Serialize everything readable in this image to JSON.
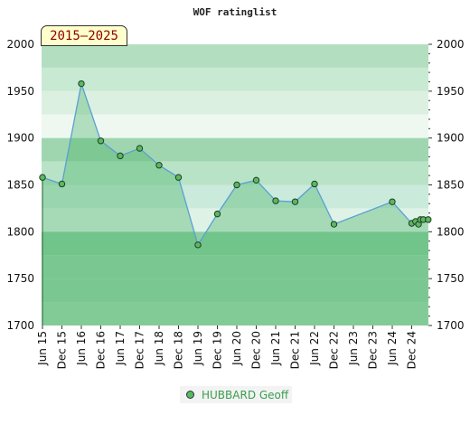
{
  "chart_data": {
    "type": "area",
    "title": "WOF ratinglist",
    "period_label": "2015–2025",
    "ylim": [
      1700,
      2000
    ],
    "yticks": [
      1700,
      1750,
      1800,
      1850,
      1900,
      1950,
      2000
    ],
    "xlim": [
      0,
      20
    ],
    "xticks": [
      {
        "pos": 0,
        "label": "Jun 15"
      },
      {
        "pos": 1,
        "label": "Dec 15"
      },
      {
        "pos": 2,
        "label": "Jun 16"
      },
      {
        "pos": 3,
        "label": "Dec 16"
      },
      {
        "pos": 4,
        "label": "Jun 17"
      },
      {
        "pos": 5,
        "label": "Dec 17"
      },
      {
        "pos": 6,
        "label": "Jun 18"
      },
      {
        "pos": 7,
        "label": "Dec 18"
      },
      {
        "pos": 8,
        "label": "Jun 19"
      },
      {
        "pos": 9,
        "label": "Dec 19"
      },
      {
        "pos": 10,
        "label": "Jun 20"
      },
      {
        "pos": 11,
        "label": "Dec 20"
      },
      {
        "pos": 12,
        "label": "Jun 21"
      },
      {
        "pos": 13,
        "label": "Dec 21"
      },
      {
        "pos": 14,
        "label": "Jun 22"
      },
      {
        "pos": 15,
        "label": "Dec 22"
      },
      {
        "pos": 16,
        "label": "Jun 23"
      },
      {
        "pos": 17,
        "label": "Dec 23"
      },
      {
        "pos": 18,
        "label": "Jun 24"
      },
      {
        "pos": 19,
        "label": "Dec 24"
      }
    ],
    "series": [
      {
        "name": "HUBBARD Geoff",
        "points": [
          [
            0,
            1858
          ],
          [
            1,
            1851
          ],
          [
            2,
            1958
          ],
          [
            3,
            1897
          ],
          [
            4,
            1881
          ],
          [
            5,
            1889
          ],
          [
            6,
            1871
          ],
          [
            7,
            1858
          ],
          [
            8,
            1786
          ],
          [
            9,
            1819
          ],
          [
            10,
            1850
          ],
          [
            11,
            1855
          ],
          [
            12,
            1833
          ],
          [
            13,
            1832
          ],
          [
            14,
            1851
          ],
          [
            15,
            1808
          ],
          [
            18,
            1832
          ],
          [
            19,
            1809
          ],
          [
            19.2,
            1811
          ],
          [
            19.35,
            1808
          ],
          [
            19.45,
            1813
          ],
          [
            19.6,
            1813
          ],
          [
            19.85,
            1813
          ]
        ]
      }
    ],
    "bands": [
      {
        "from": 1975,
        "to": 2000,
        "color": "#b3dfc0"
      },
      {
        "from": 1950,
        "to": 1975,
        "color": "#c8e9d2"
      },
      {
        "from": 1925,
        "to": 1950,
        "color": "#dbf0e1"
      },
      {
        "from": 1900,
        "to": 1925,
        "color": "#eef8f1"
      },
      {
        "from": 1875,
        "to": 1900,
        "color": "#9fd6b0"
      },
      {
        "from": 1850,
        "to": 1875,
        "color": "#b9e3c6"
      },
      {
        "from": 1825,
        "to": 1850,
        "color": "#caeadb"
      },
      {
        "from": 1800,
        "to": 1825,
        "color": "#def2e6"
      },
      {
        "from": 1775,
        "to": 1800,
        "color": "#8dcfa2"
      },
      {
        "from": 1750,
        "to": 1775,
        "color": "#9ad5ad"
      },
      {
        "from": 1725,
        "to": 1750,
        "color": "#9ad5ad"
      },
      {
        "from": 1700,
        "to": 1725,
        "color": "#a6dab6"
      }
    ],
    "colors": {
      "area": "#3fae5f",
      "line": "#5a9fd4",
      "marker": "#5cb85c",
      "marker_stroke": "#1f3d2a"
    }
  }
}
